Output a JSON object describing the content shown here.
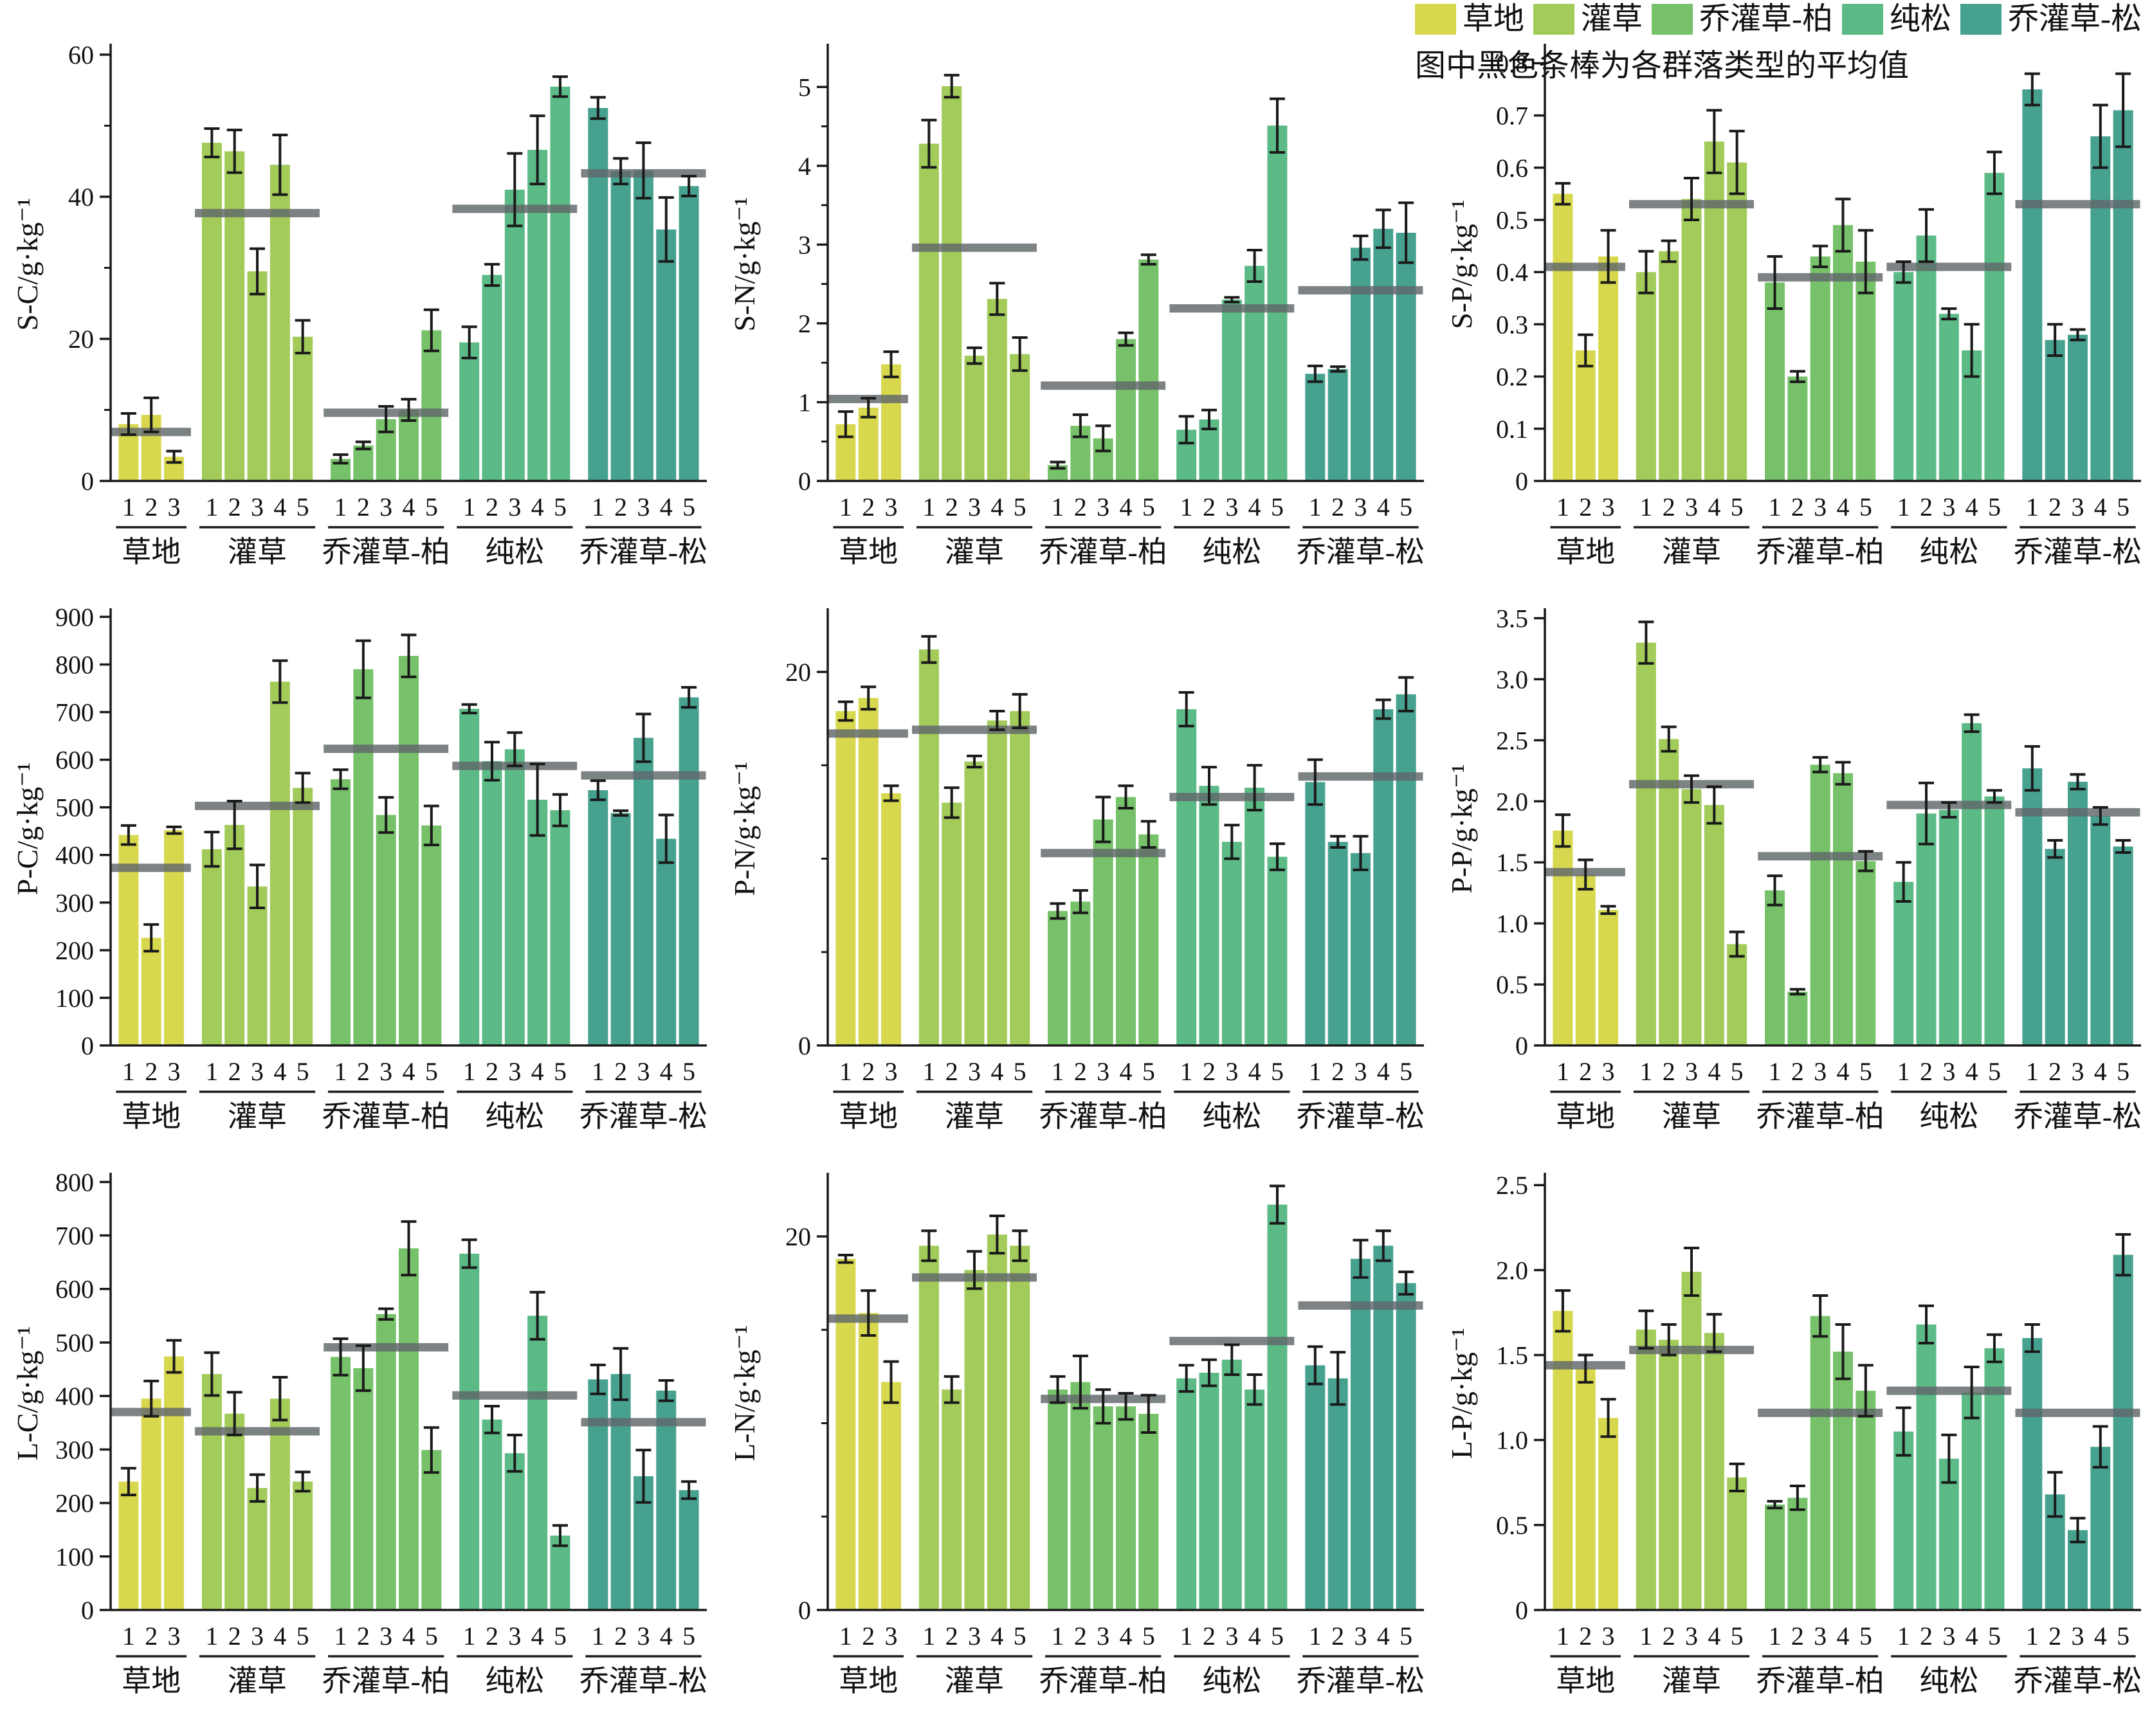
{
  "legend": {
    "items": [
      {
        "label": "草地",
        "color": "#d7d84e"
      },
      {
        "label": "灌草",
        "color": "#a2cb5a"
      },
      {
        "label": "乔灌草-柏",
        "color": "#76c169"
      },
      {
        "label": "纯松",
        "color": "#5bba86"
      },
      {
        "label": "乔灌草-松",
        "color": "#47a18f"
      }
    ],
    "note": "图中黑色条棒为各群落类型的平均值"
  },
  "group_defs": {
    "labels": [
      "草地",
      "灌草",
      "乔灌草-柏",
      "纯松",
      "乔灌草-松"
    ],
    "sizes": [
      3,
      5,
      5,
      5,
      5
    ],
    "bar_numbers": [
      "1",
      "2",
      "3",
      "4",
      "5"
    ],
    "colors": [
      "#d7d84e",
      "#a2cb5a",
      "#76c169",
      "#5bba86",
      "#47a18f"
    ],
    "mean_line_color": "#60666a"
  },
  "chart_data": [
    {
      "type": "bar",
      "key": "S-C",
      "ylabel": "S-C/g·kg⁻¹",
      "ylim": [
        0,
        61
      ],
      "yticks": {
        "major": [
          0,
          20,
          40,
          60
        ],
        "labels": [
          "0",
          "20",
          "40",
          "60"
        ],
        "minor": [
          10,
          30,
          50
        ]
      },
      "groups": [
        {
          "values": [
            8.0,
            9.3,
            3.4
          ],
          "errors": [
            1.5,
            2.4,
            0.8
          ],
          "mean": 6.9
        },
        {
          "values": [
            47.6,
            46.4,
            29.5,
            44.5,
            20.3
          ],
          "errors": [
            2.0,
            3.0,
            3.2,
            4.2,
            2.3
          ],
          "mean": 37.7
        },
        {
          "values": [
            3.1,
            5.0,
            8.7,
            10.0,
            21.2
          ],
          "errors": [
            0.6,
            0.5,
            1.8,
            1.5,
            2.9
          ],
          "mean": 9.6
        },
        {
          "values": [
            19.5,
            29.0,
            41.0,
            46.6,
            55.5
          ],
          "errors": [
            2.2,
            1.5,
            5.1,
            4.8,
            1.4
          ],
          "mean": 38.3
        },
        {
          "values": [
            52.5,
            43.6,
            43.7,
            35.4,
            41.5
          ],
          "errors": [
            1.5,
            1.8,
            3.9,
            4.5,
            1.4
          ],
          "mean": 43.3
        }
      ]
    },
    {
      "type": "bar",
      "key": "S-N",
      "ylabel": "S-N/g·kg⁻¹",
      "ylim": [
        0,
        5.5
      ],
      "yticks": {
        "major": [
          0,
          1,
          2,
          3,
          4,
          5
        ],
        "labels": [
          "0",
          "1",
          "2",
          "3",
          "4",
          "5"
        ],
        "minor": [
          0.5,
          1.5,
          2.5,
          3.5,
          4.5
        ]
      },
      "groups": [
        {
          "values": [
            0.72,
            0.93,
            1.48
          ],
          "errors": [
            0.16,
            0.12,
            0.16
          ],
          "mean": 1.04
        },
        {
          "values": [
            4.28,
            5.01,
            1.59,
            2.31,
            1.61
          ],
          "errors": [
            0.3,
            0.14,
            0.1,
            0.2,
            0.21
          ],
          "mean": 2.96
        },
        {
          "values": [
            0.2,
            0.7,
            0.54,
            1.8,
            2.81
          ],
          "errors": [
            0.04,
            0.14,
            0.16,
            0.08,
            0.06
          ],
          "mean": 1.21
        },
        {
          "values": [
            0.65,
            0.78,
            2.3,
            2.73,
            4.51
          ],
          "errors": [
            0.17,
            0.12,
            0.03,
            0.2,
            0.34
          ],
          "mean": 2.19
        },
        {
          "values": [
            1.36,
            1.42,
            2.96,
            3.2,
            3.15
          ],
          "errors": [
            0.1,
            0.03,
            0.15,
            0.24,
            0.38
          ],
          "mean": 2.42
        }
      ]
    },
    {
      "type": "bar",
      "key": "S-P",
      "ylabel": "S-P/g·kg⁻¹",
      "ylim": [
        0,
        0.83
      ],
      "yticks": {
        "major": [
          0,
          0.1,
          0.2,
          0.3,
          0.4,
          0.5,
          0.6,
          0.7,
          0.8
        ],
        "labels": [
          "0",
          "0.1",
          "0.2",
          "0.3",
          "0.4",
          "0.5",
          "0.6",
          "0.7",
          "0.8"
        ],
        "minor": []
      },
      "groups": [
        {
          "values": [
            0.55,
            0.25,
            0.43
          ],
          "errors": [
            0.02,
            0.03,
            0.05
          ],
          "mean": 0.41
        },
        {
          "values": [
            0.4,
            0.44,
            0.54,
            0.65,
            0.61
          ],
          "errors": [
            0.04,
            0.02,
            0.04,
            0.06,
            0.06
          ],
          "mean": 0.53
        },
        {
          "values": [
            0.38,
            0.2,
            0.43,
            0.49,
            0.42
          ],
          "errors": [
            0.05,
            0.01,
            0.02,
            0.05,
            0.06
          ],
          "mean": 0.39
        },
        {
          "values": [
            0.4,
            0.47,
            0.32,
            0.25,
            0.59
          ],
          "errors": [
            0.02,
            0.05,
            0.01,
            0.05,
            0.04
          ],
          "mean": 0.41
        },
        {
          "values": [
            0.75,
            0.27,
            0.28,
            0.66,
            0.71
          ],
          "errors": [
            0.03,
            0.03,
            0.01,
            0.06,
            0.07
          ],
          "mean": 0.53
        }
      ]
    },
    {
      "type": "bar",
      "key": "P-C",
      "ylabel": "P-C/g·kg⁻¹",
      "ylim": [
        0,
        910
      ],
      "yticks": {
        "major": [
          0,
          100,
          200,
          300,
          400,
          500,
          600,
          700,
          800,
          900
        ],
        "labels": [
          "0",
          "100",
          "200",
          "300",
          "400",
          "500",
          "600",
          "700",
          "800",
          "900"
        ],
        "minor": []
      },
      "groups": [
        {
          "values": [
            442,
            226,
            452
          ],
          "errors": [
            20,
            28,
            7
          ],
          "mean": 373
        },
        {
          "values": [
            412,
            463,
            334,
            764,
            541
          ],
          "errors": [
            36,
            50,
            45,
            44,
            31
          ],
          "mean": 503
        },
        {
          "values": [
            559,
            790,
            484,
            818,
            462
          ],
          "errors": [
            20,
            60,
            37,
            44,
            41
          ],
          "mean": 623
        },
        {
          "values": [
            707,
            597,
            622,
            516,
            494
          ],
          "errors": [
            9,
            40,
            35,
            75,
            33
          ],
          "mean": 587
        },
        {
          "values": [
            536,
            488,
            646,
            434,
            731
          ],
          "errors": [
            20,
            5,
            50,
            50,
            21
          ],
          "mean": 567
        }
      ]
    },
    {
      "type": "bar",
      "key": "P-N",
      "ylabel": "P-N/g·kg⁻¹",
      "ylim": [
        0,
        23.2
      ],
      "yticks": {
        "major": [
          0,
          20
        ],
        "labels": [
          "0",
          "20"
        ],
        "minor": [
          5,
          10,
          15
        ]
      },
      "groups": [
        {
          "values": [
            17.9,
            18.6,
            13.5
          ],
          "errors": [
            0.5,
            0.6,
            0.4
          ],
          "mean": 16.7
        },
        {
          "values": [
            21.2,
            13.0,
            15.2,
            17.4,
            17.9
          ],
          "errors": [
            0.7,
            0.8,
            0.3,
            0.5,
            0.9
          ],
          "mean": 16.9
        },
        {
          "values": [
            7.2,
            7.7,
            12.1,
            13.3,
            11.3
          ],
          "errors": [
            0.4,
            0.6,
            1.2,
            0.6,
            0.7
          ],
          "mean": 10.3
        },
        {
          "values": [
            18.0,
            13.9,
            10.9,
            13.8,
            10.1
          ],
          "errors": [
            0.9,
            1.0,
            0.9,
            1.2,
            0.7
          ],
          "mean": 13.3
        },
        {
          "values": [
            14.1,
            10.9,
            10.3,
            18.0,
            18.8
          ],
          "errors": [
            1.2,
            0.3,
            0.9,
            0.5,
            0.9
          ],
          "mean": 14.4
        }
      ]
    },
    {
      "type": "bar",
      "key": "P-P",
      "ylabel": "P-P/g·kg⁻¹",
      "ylim": [
        0,
        3.55
      ],
      "yticks": {
        "major": [
          0,
          0.5,
          1.0,
          1.5,
          2.0,
          2.5,
          3.0,
          3.5
        ],
        "labels": [
          "0",
          "0.5",
          "1.0",
          "1.5",
          "2.0",
          "2.5",
          "3.0",
          "3.5"
        ],
        "minor": []
      },
      "groups": [
        {
          "values": [
            1.76,
            1.4,
            1.11
          ],
          "errors": [
            0.13,
            0.12,
            0.03
          ],
          "mean": 1.42
        },
        {
          "values": [
            3.3,
            2.51,
            2.1,
            1.97,
            0.83
          ],
          "errors": [
            0.17,
            0.1,
            0.11,
            0.15,
            0.1
          ],
          "mean": 2.14
        },
        {
          "values": [
            1.27,
            0.44,
            2.3,
            2.23,
            1.51
          ],
          "errors": [
            0.12,
            0.02,
            0.06,
            0.09,
            0.08
          ],
          "mean": 1.55
        },
        {
          "values": [
            1.34,
            1.9,
            1.93,
            2.64,
            2.04
          ],
          "errors": [
            0.16,
            0.25,
            0.06,
            0.07,
            0.05
          ],
          "mean": 1.97
        },
        {
          "values": [
            2.27,
            1.61,
            2.16,
            1.88,
            1.63
          ],
          "errors": [
            0.18,
            0.07,
            0.06,
            0.07,
            0.05
          ],
          "mean": 1.91
        }
      ]
    },
    {
      "type": "bar",
      "key": "L-C",
      "ylabel": "L-C/g·kg⁻¹",
      "ylim": [
        0,
        810
      ],
      "yticks": {
        "major": [
          0,
          100,
          200,
          300,
          400,
          500,
          600,
          700,
          800
        ],
        "labels": [
          "0",
          "100",
          "200",
          "300",
          "400",
          "500",
          "600",
          "700",
          "800"
        ],
        "minor": []
      },
      "groups": [
        {
          "values": [
            240,
            395,
            474
          ],
          "errors": [
            25,
            33,
            30
          ],
          "mean": 370
        },
        {
          "values": [
            441,
            367,
            228,
            395,
            240
          ],
          "errors": [
            40,
            40,
            25,
            40,
            18
          ],
          "mean": 334
        },
        {
          "values": [
            473,
            452,
            553,
            676,
            299
          ],
          "errors": [
            34,
            42,
            10,
            50,
            42
          ],
          "mean": 491
        },
        {
          "values": [
            666,
            356,
            293,
            550,
            139
          ],
          "errors": [
            26,
            25,
            34,
            44,
            19
          ],
          "mean": 401
        },
        {
          "values": [
            431,
            441,
            250,
            410,
            224
          ],
          "errors": [
            27,
            48,
            49,
            19,
            16
          ],
          "mean": 351
        }
      ]
    },
    {
      "type": "bar",
      "key": "L-N",
      "ylabel": "L-N/g·kg⁻¹",
      "ylim": [
        0,
        23.2
      ],
      "yticks": {
        "major": [
          0,
          20
        ],
        "labels": [
          "0",
          "20"
        ],
        "minor": [
          5,
          10,
          15
        ]
      },
      "groups": [
        {
          "values": [
            18.8,
            15.9,
            12.2
          ],
          "errors": [
            0.2,
            1.2,
            1.1
          ],
          "mean": 15.6
        },
        {
          "values": [
            19.5,
            11.8,
            18.2,
            20.1,
            19.5
          ],
          "errors": [
            0.8,
            0.7,
            1.0,
            1.0,
            0.8
          ],
          "mean": 17.8
        },
        {
          "values": [
            11.8,
            12.2,
            10.9,
            10.9,
            10.5
          ],
          "errors": [
            0.7,
            1.4,
            0.9,
            0.7,
            1.0
          ],
          "mean": 11.3
        },
        {
          "values": [
            12.4,
            12.7,
            13.4,
            11.8,
            21.7
          ],
          "errors": [
            0.7,
            0.7,
            0.8,
            0.8,
            1.0
          ],
          "mean": 14.4
        },
        {
          "values": [
            13.1,
            12.4,
            18.8,
            19.5,
            17.5
          ],
          "errors": [
            1.0,
            1.4,
            1.0,
            0.8,
            0.6
          ],
          "mean": 16.3
        }
      ]
    },
    {
      "type": "bar",
      "key": "L-P",
      "ylabel": "L-P/g·kg⁻¹",
      "ylim": [
        0,
        2.55
      ],
      "yticks": {
        "major": [
          0,
          0.5,
          1.0,
          1.5,
          2.0,
          2.5
        ],
        "labels": [
          "0",
          "0.5",
          "1.0",
          "1.5",
          "2.0",
          "2.5"
        ],
        "minor": []
      },
      "groups": [
        {
          "values": [
            1.76,
            1.42,
            1.13
          ],
          "errors": [
            0.12,
            0.08,
            0.11
          ],
          "mean": 1.44
        },
        {
          "values": [
            1.65,
            1.59,
            1.99,
            1.63,
            0.78
          ],
          "errors": [
            0.11,
            0.09,
            0.14,
            0.11,
            0.08
          ],
          "mean": 1.53
        },
        {
          "values": [
            0.62,
            0.66,
            1.73,
            1.52,
            1.29
          ],
          "errors": [
            0.02,
            0.07,
            0.12,
            0.16,
            0.15
          ],
          "mean": 1.16
        },
        {
          "values": [
            1.05,
            1.68,
            0.89,
            1.28,
            1.54
          ],
          "errors": [
            0.14,
            0.11,
            0.14,
            0.15,
            0.08
          ],
          "mean": 1.29
        },
        {
          "values": [
            1.6,
            0.68,
            0.47,
            0.96,
            2.09
          ],
          "errors": [
            0.08,
            0.13,
            0.07,
            0.12,
            0.12
          ],
          "mean": 1.16
        }
      ]
    }
  ]
}
